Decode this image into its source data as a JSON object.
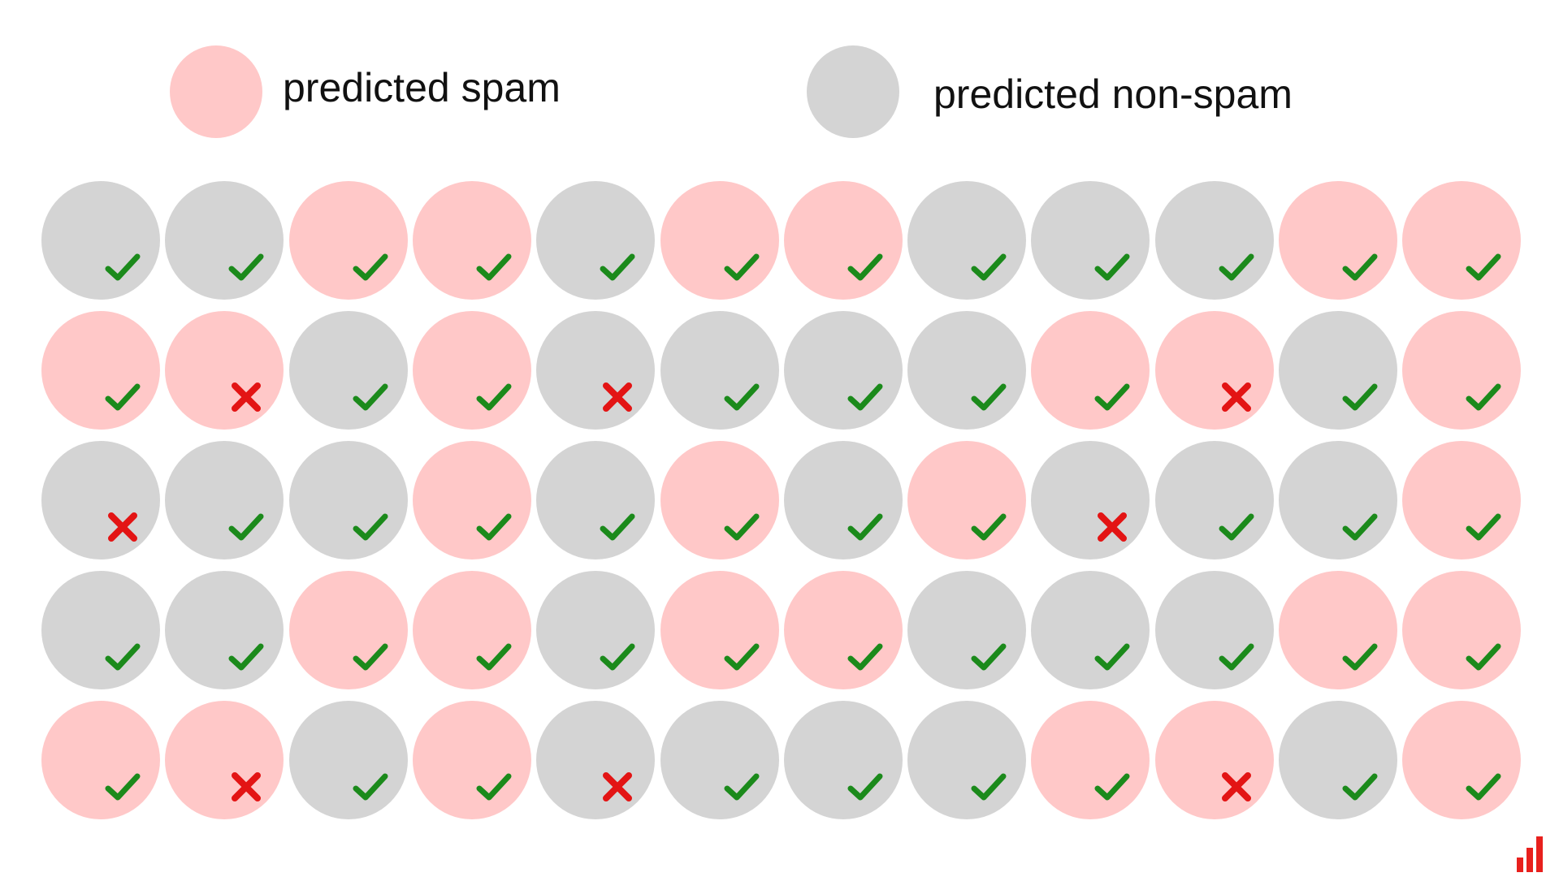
{
  "legend": {
    "spam_label": "predicted spam",
    "non_spam_label": "predicted non-spam"
  },
  "colors": {
    "spam": "#ffc8c8",
    "non_spam": "#d4d4d4",
    "correct": "#1b8a1b",
    "wrong": "#e31414",
    "brand": "#e8201d"
  },
  "grid": {
    "rows": [
      [
        {
          "p": "non-spam",
          "r": "correct"
        },
        {
          "p": "non-spam",
          "r": "correct"
        },
        {
          "p": "spam",
          "r": "correct"
        },
        {
          "p": "spam",
          "r": "correct"
        },
        {
          "p": "non-spam",
          "r": "correct"
        },
        {
          "p": "spam",
          "r": "correct"
        },
        {
          "p": "spam",
          "r": "correct"
        },
        {
          "p": "non-spam",
          "r": "correct"
        },
        {
          "p": "non-spam",
          "r": "correct"
        },
        {
          "p": "non-spam",
          "r": "correct"
        },
        {
          "p": "spam",
          "r": "correct"
        },
        {
          "p": "spam",
          "r": "correct"
        }
      ],
      [
        {
          "p": "spam",
          "r": "correct"
        },
        {
          "p": "spam",
          "r": "wrong"
        },
        {
          "p": "non-spam",
          "r": "correct"
        },
        {
          "p": "spam",
          "r": "correct"
        },
        {
          "p": "non-spam",
          "r": "wrong"
        },
        {
          "p": "non-spam",
          "r": "correct"
        },
        {
          "p": "non-spam",
          "r": "correct"
        },
        {
          "p": "non-spam",
          "r": "correct"
        },
        {
          "p": "spam",
          "r": "correct"
        },
        {
          "p": "spam",
          "r": "wrong"
        },
        {
          "p": "non-spam",
          "r": "correct"
        },
        {
          "p": "spam",
          "r": "correct"
        }
      ],
      [
        {
          "p": "non-spam",
          "r": "wrong"
        },
        {
          "p": "non-spam",
          "r": "correct"
        },
        {
          "p": "non-spam",
          "r": "correct"
        },
        {
          "p": "spam",
          "r": "correct"
        },
        {
          "p": "non-spam",
          "r": "correct"
        },
        {
          "p": "spam",
          "r": "correct"
        },
        {
          "p": "non-spam",
          "r": "correct"
        },
        {
          "p": "spam",
          "r": "correct"
        },
        {
          "p": "non-spam",
          "r": "wrong"
        },
        {
          "p": "non-spam",
          "r": "correct"
        },
        {
          "p": "non-spam",
          "r": "correct"
        },
        {
          "p": "spam",
          "r": "correct"
        }
      ],
      [
        {
          "p": "non-spam",
          "r": "correct"
        },
        {
          "p": "non-spam",
          "r": "correct"
        },
        {
          "p": "spam",
          "r": "correct"
        },
        {
          "p": "spam",
          "r": "correct"
        },
        {
          "p": "non-spam",
          "r": "correct"
        },
        {
          "p": "spam",
          "r": "correct"
        },
        {
          "p": "spam",
          "r": "correct"
        },
        {
          "p": "non-spam",
          "r": "correct"
        },
        {
          "p": "non-spam",
          "r": "correct"
        },
        {
          "p": "non-spam",
          "r": "correct"
        },
        {
          "p": "spam",
          "r": "correct"
        },
        {
          "p": "spam",
          "r": "correct"
        }
      ],
      [
        {
          "p": "spam",
          "r": "correct"
        },
        {
          "p": "spam",
          "r": "wrong"
        },
        {
          "p": "non-spam",
          "r": "correct"
        },
        {
          "p": "spam",
          "r": "correct"
        },
        {
          "p": "non-spam",
          "r": "wrong"
        },
        {
          "p": "non-spam",
          "r": "correct"
        },
        {
          "p": "non-spam",
          "r": "correct"
        },
        {
          "p": "non-spam",
          "r": "correct"
        },
        {
          "p": "spam",
          "r": "correct"
        },
        {
          "p": "spam",
          "r": "wrong"
        },
        {
          "p": "non-spam",
          "r": "correct"
        },
        {
          "p": "spam",
          "r": "correct"
        }
      ]
    ]
  },
  "icons": {
    "correct": "check-icon",
    "wrong": "cross-icon",
    "brand": "bar-chart-logo-icon"
  }
}
